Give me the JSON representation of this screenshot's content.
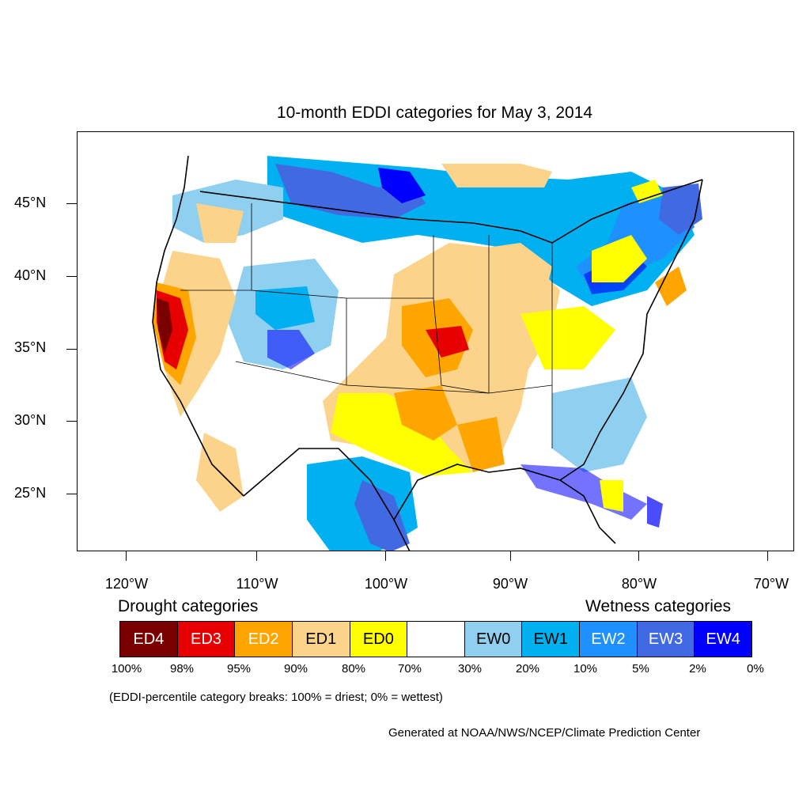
{
  "title": "10-month EDDI categories for May 3, 2014",
  "lat_labels": [
    "45°N",
    "40°N",
    "35°N",
    "30°N",
    "25°N"
  ],
  "lon_labels": [
    "120°W",
    "110°W",
    "100°W",
    "90°W",
    "80°W",
    "70°W"
  ],
  "drought_header": "Drought categories",
  "wetness_header": "Wetness categories",
  "legend": [
    {
      "label": "ED4",
      "color": "#7a0000",
      "text_color": "#ffffff"
    },
    {
      "label": "ED3",
      "color": "#e60000",
      "text_color": "#ffffff"
    },
    {
      "label": "ED2",
      "color": "#ffa500",
      "text_color": "#ffffff"
    },
    {
      "label": "ED1",
      "color": "#fcd38a",
      "text_color": "#000000"
    },
    {
      "label": "ED0",
      "color": "#ffff00",
      "text_color": "#000000"
    },
    {
      "label": "",
      "color": "#ffffff",
      "text_color": "#000000"
    },
    {
      "label": "EW0",
      "color": "#8fcff0",
      "text_color": "#000000"
    },
    {
      "label": "EW1",
      "color": "#00b0f0",
      "text_color": "#000000"
    },
    {
      "label": "EW2",
      "color": "#1e90ff",
      "text_color": "#ffffff"
    },
    {
      "label": "EW3",
      "color": "#4169e1",
      "text_color": "#ffffff"
    },
    {
      "label": "EW4",
      "color": "#0000ff",
      "text_color": "#ffffff"
    }
  ],
  "breaks": [
    "100%",
    "98%",
    "95%",
    "90%",
    "80%",
    "70%",
    "30%",
    "20%",
    "10%",
    "5%",
    "2%",
    "0%"
  ],
  "note": "(EDDI-percentile category breaks: 100% = driest; 0% = wettest)",
  "credit": "Generated at NOAA/NWS/NCEP/Climate Prediction Center"
}
